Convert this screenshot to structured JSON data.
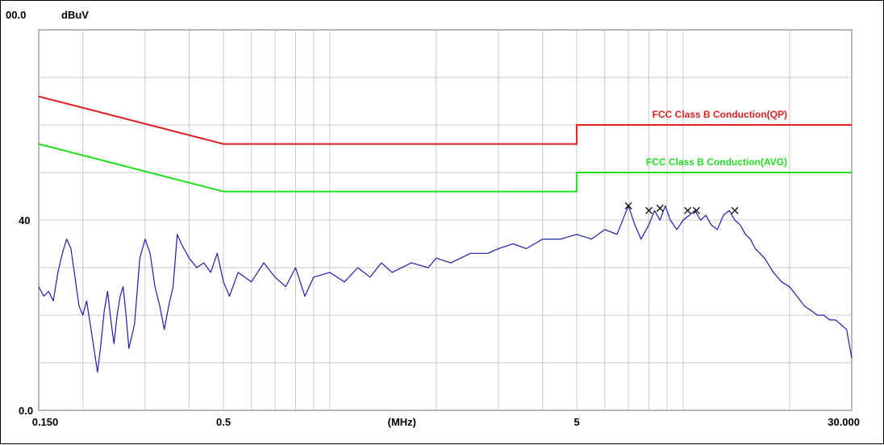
{
  "chart_data": {
    "type": "line",
    "x_scale": "log",
    "x_unit": "(MHz)",
    "y_unit": "dBuV",
    "xlim": [
      0.15,
      30
    ],
    "ylim": [
      0,
      80
    ],
    "y_top_label": "00.0",
    "y_tick_labels": [
      {
        "value": 40,
        "label": "40"
      },
      {
        "value": 0,
        "label": "0.0"
      }
    ],
    "x_tick_labels": [
      {
        "value": 0.15,
        "label": "0.150"
      },
      {
        "value": 0.5,
        "label": "0.5"
      },
      {
        "value": 5,
        "label": "5"
      },
      {
        "value": 30,
        "label": "30.000"
      }
    ],
    "grid": true,
    "limits": [
      {
        "name": "FCC Class B Conduction(QP)",
        "color": "#e02020",
        "points": [
          [
            0.15,
            66
          ],
          [
            0.5,
            56
          ],
          [
            5,
            56
          ],
          [
            5,
            60
          ],
          [
            30,
            60
          ]
        ]
      },
      {
        "name": "FCC Class B Conduction(AVG)",
        "color": "#22dd22",
        "points": [
          [
            0.15,
            56
          ],
          [
            0.5,
            46
          ],
          [
            5,
            46
          ],
          [
            5,
            50
          ],
          [
            30,
            50
          ]
        ]
      }
    ],
    "series": [
      {
        "color": "#1c1ca8",
        "points": [
          [
            0.15,
            26
          ],
          [
            0.155,
            24
          ],
          [
            0.16,
            25
          ],
          [
            0.165,
            23
          ],
          [
            0.17,
            29
          ],
          [
            0.175,
            33
          ],
          [
            0.18,
            36
          ],
          [
            0.185,
            34
          ],
          [
            0.19,
            28
          ],
          [
            0.195,
            22
          ],
          [
            0.2,
            20
          ],
          [
            0.205,
            23
          ],
          [
            0.21,
            18
          ],
          [
            0.215,
            13
          ],
          [
            0.22,
            8
          ],
          [
            0.225,
            14
          ],
          [
            0.23,
            21
          ],
          [
            0.235,
            25
          ],
          [
            0.24,
            19
          ],
          [
            0.245,
            14
          ],
          [
            0.25,
            20
          ],
          [
            0.255,
            24
          ],
          [
            0.26,
            26
          ],
          [
            0.265,
            20
          ],
          [
            0.27,
            13
          ],
          [
            0.28,
            18
          ],
          [
            0.29,
            32
          ],
          [
            0.3,
            36
          ],
          [
            0.31,
            33
          ],
          [
            0.32,
            26
          ],
          [
            0.33,
            22
          ],
          [
            0.34,
            17
          ],
          [
            0.35,
            22
          ],
          [
            0.36,
            26
          ],
          [
            0.37,
            37
          ],
          [
            0.38,
            35
          ],
          [
            0.4,
            32
          ],
          [
            0.42,
            30
          ],
          [
            0.44,
            31
          ],
          [
            0.46,
            29
          ],
          [
            0.48,
            33
          ],
          [
            0.5,
            27
          ],
          [
            0.52,
            24
          ],
          [
            0.55,
            29
          ],
          [
            0.6,
            27
          ],
          [
            0.65,
            31
          ],
          [
            0.7,
            28
          ],
          [
            0.75,
            26
          ],
          [
            0.8,
            30
          ],
          [
            0.85,
            24
          ],
          [
            0.9,
            28
          ],
          [
            1.0,
            29
          ],
          [
            1.1,
            27
          ],
          [
            1.2,
            30
          ],
          [
            1.3,
            28
          ],
          [
            1.4,
            31
          ],
          [
            1.5,
            29
          ],
          [
            1.7,
            31
          ],
          [
            1.9,
            30
          ],
          [
            2.0,
            32
          ],
          [
            2.2,
            31
          ],
          [
            2.5,
            33
          ],
          [
            2.8,
            33
          ],
          [
            3.0,
            34
          ],
          [
            3.3,
            35
          ],
          [
            3.6,
            34
          ],
          [
            4.0,
            36
          ],
          [
            4.5,
            36
          ],
          [
            5.0,
            37
          ],
          [
            5.5,
            36
          ],
          [
            6.0,
            38
          ],
          [
            6.5,
            37
          ],
          [
            7.0,
            43
          ],
          [
            7.3,
            39
          ],
          [
            7.6,
            36
          ],
          [
            8.0,
            39
          ],
          [
            8.3,
            42
          ],
          [
            8.6,
            40
          ],
          [
            8.9,
            43
          ],
          [
            9.2,
            40
          ],
          [
            9.6,
            38
          ],
          [
            10.0,
            40
          ],
          [
            10.4,
            41
          ],
          [
            10.8,
            42
          ],
          [
            11.2,
            40
          ],
          [
            11.6,
            41
          ],
          [
            12.0,
            39
          ],
          [
            12.5,
            38
          ],
          [
            13.0,
            41
          ],
          [
            13.5,
            42
          ],
          [
            14.0,
            40
          ],
          [
            14.5,
            39
          ],
          [
            15.0,
            37
          ],
          [
            15.5,
            36
          ],
          [
            16.0,
            34
          ],
          [
            17.0,
            32
          ],
          [
            18.0,
            29
          ],
          [
            19.0,
            27
          ],
          [
            20.0,
            26
          ],
          [
            21.0,
            24
          ],
          [
            22.0,
            22
          ],
          [
            23.0,
            21
          ],
          [
            24.0,
            20
          ],
          [
            25.0,
            20
          ],
          [
            26.0,
            19
          ],
          [
            27.0,
            19
          ],
          [
            28.0,
            18
          ],
          [
            29.0,
            17
          ],
          [
            30.0,
            11
          ]
        ]
      }
    ],
    "markers": [
      {
        "x": 7.0,
        "y": 43
      },
      {
        "x": 8.0,
        "y": 42
      },
      {
        "x": 8.6,
        "y": 42.5
      },
      {
        "x": 10.3,
        "y": 42
      },
      {
        "x": 10.9,
        "y": 42
      },
      {
        "x": 14.0,
        "y": 42
      }
    ]
  }
}
